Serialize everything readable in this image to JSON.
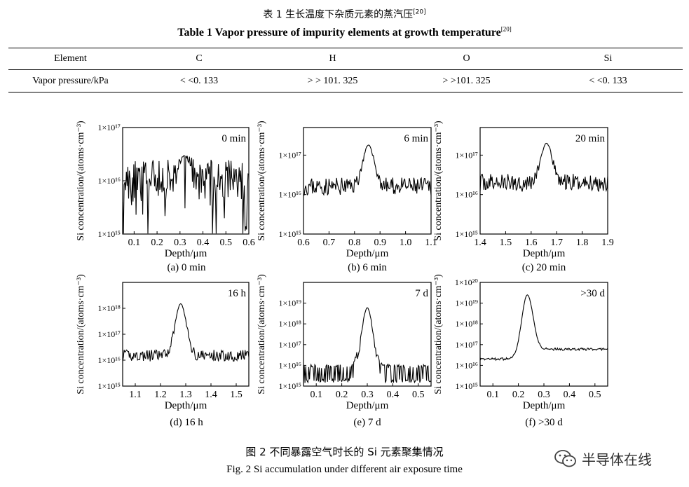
{
  "table": {
    "title_cn": "表 1   生长温度下杂质元素的蒸汽压",
    "title_en": "Table 1   Vapor pressure of impurity elements at growth temperature",
    "ref": "[20]",
    "header": [
      "Element",
      "C",
      "H",
      "O",
      "Si"
    ],
    "rows": [
      [
        "Vapor pressure/kPa",
        "< <0. 133",
        "> > 101. 325",
        "> >101. 325",
        "< <0. 133"
      ]
    ]
  },
  "figure": {
    "caption_cn": "图 2   不同暴露空气时长的 Si 元素聚集情况",
    "caption_en": "Fig. 2   Si accumulation under different air exposure time"
  },
  "watermark": {
    "text": "半导体在线"
  },
  "chart_data": [
    {
      "type": "line",
      "title": "(a) 0 min",
      "annotation": "0 min",
      "xlabel": "Depth/μm",
      "ylabel": "Si concentration/(atoms·cm⁻³)",
      "xlim": [
        0.05,
        0.6
      ],
      "xticks": [
        0.1,
        0.2,
        0.3,
        0.4,
        0.5,
        0.6
      ],
      "ylim": [
        1000000000000000.0,
        1e+17
      ],
      "yscale": "log",
      "yticks": [
        1000000000000000.0,
        1e+16,
        1e+17
      ],
      "yticklabels": [
        "1×10¹⁵",
        "1×10¹⁶",
        "1×10¹⁷"
      ],
      "peak": {
        "x": 0.32,
        "y": 3e+16
      },
      "baseline": 1e+16,
      "noise": 0.8,
      "dips": true,
      "background_after": 1e+16
    },
    {
      "type": "line",
      "title": "(b) 6 min",
      "annotation": "6 min",
      "xlabel": "Depth/μm",
      "ylabel": "Si concentration/(atoms·cm⁻³)",
      "xlim": [
        0.6,
        1.1
      ],
      "xticks": [
        0.6,
        0.7,
        0.8,
        0.9,
        1.0,
        1.1
      ],
      "ylim": [
        1000000000000000.0,
        5e+17
      ],
      "yscale": "log",
      "yticks": [
        1000000000000000.0,
        1e+16,
        1e+17
      ],
      "yticklabels": [
        "1×10¹⁵",
        "1×10¹⁶",
        "1×10¹⁷"
      ],
      "peak": {
        "x": 0.855,
        "y": 1.8e+17
      },
      "baseline": 1.6e+16,
      "noise": 0.45,
      "dips": false,
      "background_after": 1.6e+16
    },
    {
      "type": "line",
      "title": "(c) 20 min",
      "annotation": "20 min",
      "xlabel": "Depth/μm",
      "ylabel": "Si concentration/(atoms·cm⁻³)",
      "xlim": [
        1.4,
        1.9
      ],
      "xticks": [
        1.4,
        1.5,
        1.6,
        1.7,
        1.8,
        1.9
      ],
      "ylim": [
        1000000000000000.0,
        5e+17
      ],
      "yscale": "log",
      "yticks": [
        1000000000000000.0,
        1e+16,
        1e+17
      ],
      "yticklabels": [
        "1×10¹⁵",
        "1×10¹⁶",
        "1×10¹⁷"
      ],
      "peak": {
        "x": 1.66,
        "y": 2e+17
      },
      "baseline": 2e+16,
      "noise": 0.45,
      "dips": false,
      "background_after": 2e+16
    },
    {
      "type": "line",
      "title": "(d) 16 h",
      "annotation": "16 h",
      "xlabel": "Depth/μm",
      "ylabel": "Si concentration/(atoms·cm⁻³)",
      "xlim": [
        1.05,
        1.55
      ],
      "xticks": [
        1.1,
        1.2,
        1.3,
        1.4,
        1.5
      ],
      "ylim": [
        1000000000000000.0,
        1e+19
      ],
      "yscale": "log",
      "yticks": [
        1000000000000000.0,
        1e+16,
        1e+17,
        1e+18
      ],
      "yticklabels": [
        "1×10¹⁵",
        "1×10¹⁶",
        "1×10¹⁷",
        "1×10¹⁸"
      ],
      "peak": {
        "x": 1.28,
        "y": 1.5e+18
      },
      "baseline": 1.5e+16,
      "noise": 0.45,
      "dips": false,
      "background_after": 1.5e+16
    },
    {
      "type": "line",
      "title": "(e) 7 d",
      "annotation": "7 d",
      "xlabel": "Depth/μm",
      "ylabel": "Si concentration/(atoms·cm⁻³)",
      "xlim": [
        0.05,
        0.55
      ],
      "xticks": [
        0.1,
        0.2,
        0.3,
        0.4,
        0.5
      ],
      "ylim": [
        1000000000000000.0,
        1e+20
      ],
      "yscale": "log",
      "yticks": [
        1000000000000000.0,
        1e+16,
        1e+17,
        1e+18,
        1e+19
      ],
      "yticklabels": [
        "1×10¹⁵",
        "1×10¹⁶",
        "1×10¹⁷",
        "1×10¹⁸",
        "1×10¹⁹"
      ],
      "peak": {
        "x": 0.3,
        "y": 6e+18
      },
      "baseline": 4000000000000000.0,
      "noise": 0.7,
      "dips": false,
      "background_after": 4000000000000000.0
    },
    {
      "type": "line",
      "title": "(f) >30 d",
      "annotation": ">30 d",
      "xlabel": "Depth/μm",
      "ylabel": "Si concentration/(atoms·cm⁻³)",
      "xlim": [
        0.05,
        0.55
      ],
      "xticks": [
        0.1,
        0.2,
        0.3,
        0.4,
        0.5
      ],
      "ylim": [
        1000000000000000.0,
        1e+20
      ],
      "yscale": "log",
      "yticks": [
        1000000000000000.0,
        1e+16,
        1e+17,
        1e+18,
        1e+19,
        1e+20
      ],
      "yticklabels": [
        "1×10¹⁵",
        "1×10¹⁶",
        "1×10¹⁷",
        "1×10¹⁸",
        "1×10¹⁹",
        "1×10²⁰"
      ],
      "peak": {
        "x": 0.235,
        "y": 2.5e+19
      },
      "baseline": 2e+16,
      "noise": 0.12,
      "dips": false,
      "background_after": 6e+16
    }
  ]
}
